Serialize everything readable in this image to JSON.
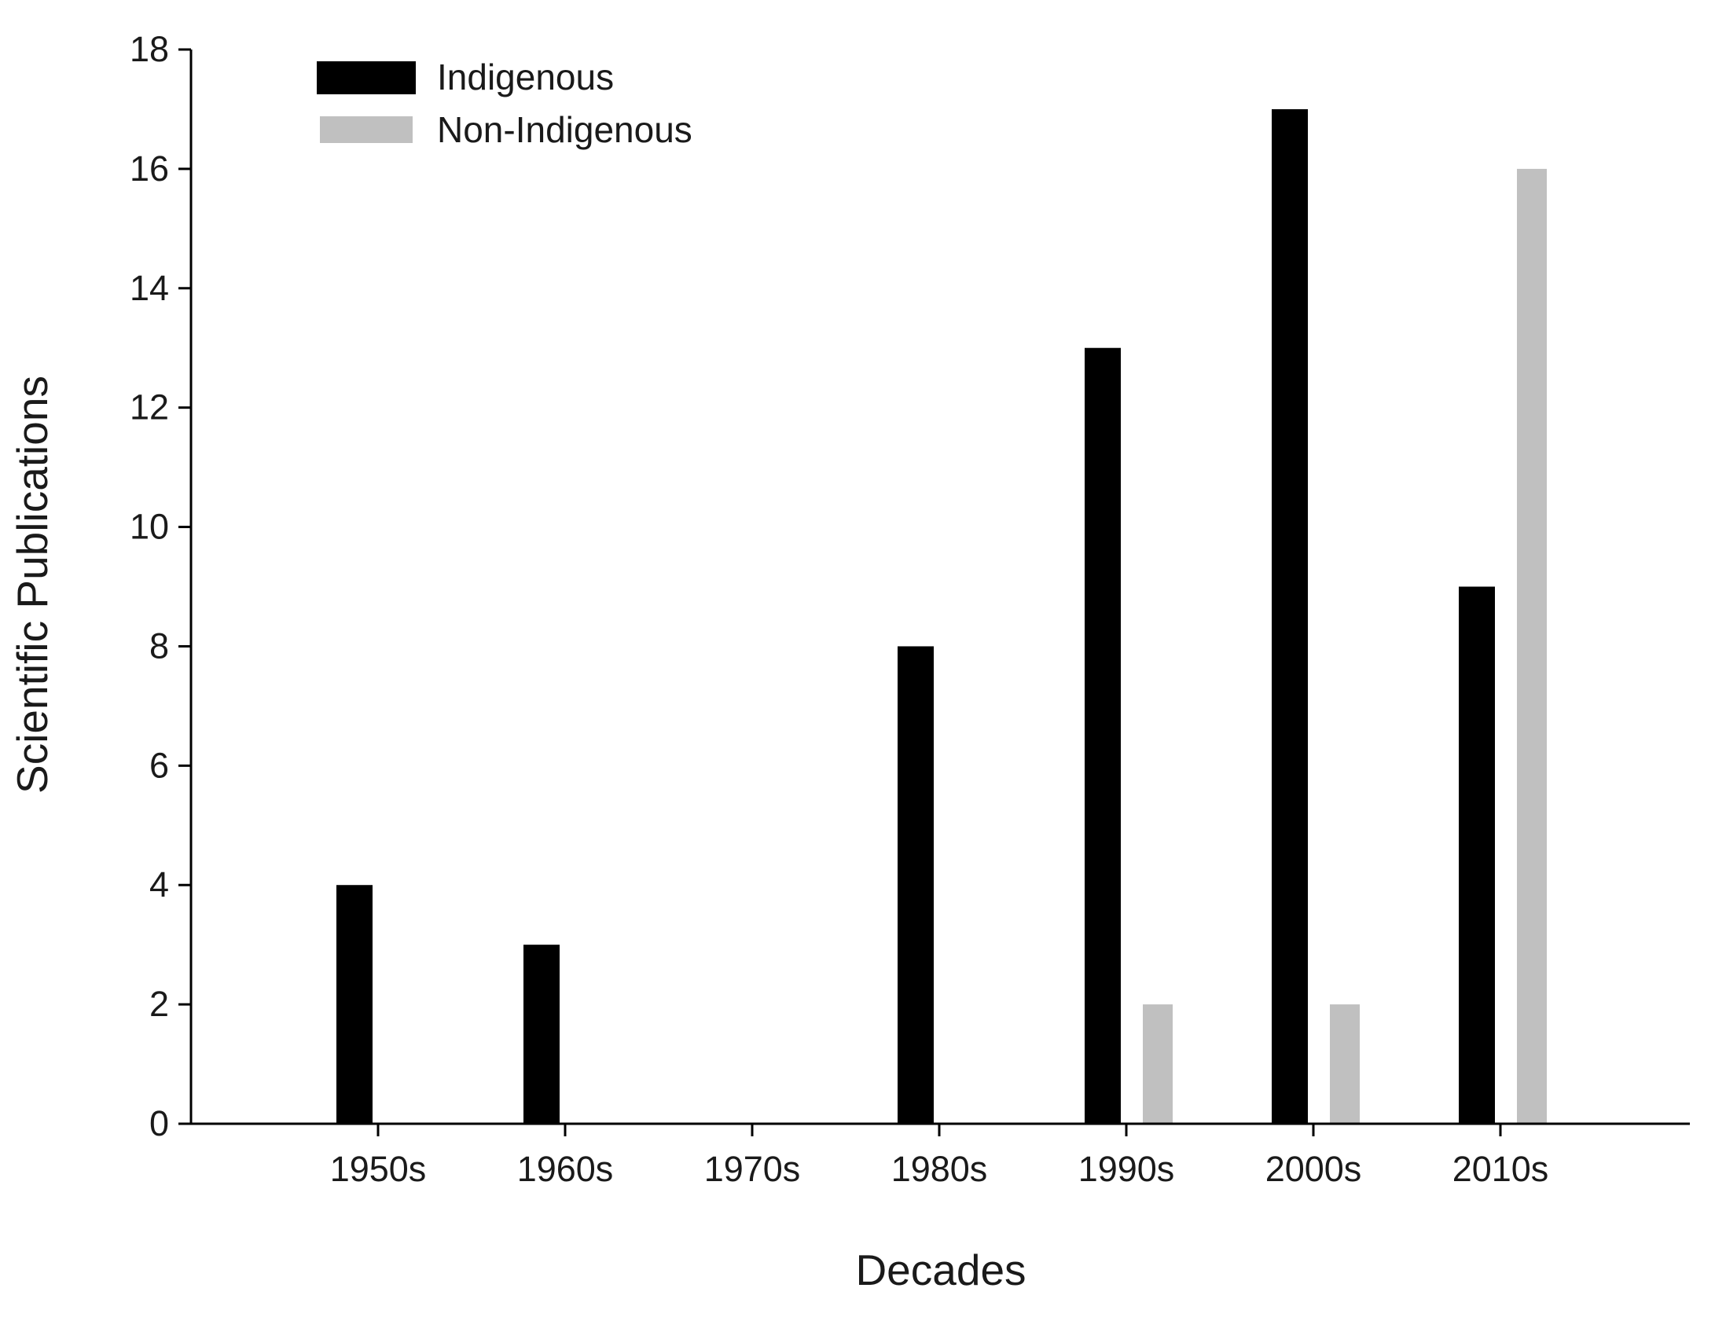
{
  "chart_data": {
    "type": "bar",
    "title": "",
    "xlabel": "Decades",
    "ylabel": "Scientific Publications",
    "categories": [
      "1950s",
      "1960s",
      "1970s",
      "1980s",
      "1990s",
      "2000s",
      "2010s"
    ],
    "series": [
      {
        "name": "Indigenous",
        "color": "#000000",
        "values": [
          4,
          3,
          0,
          8,
          13,
          17,
          9
        ]
      },
      {
        "name": "Non-Indigenous",
        "color": "#c0c0c0",
        "values": [
          0,
          0,
          0,
          0,
          2,
          2,
          16
        ]
      }
    ],
    "ylim": [
      0,
      18
    ],
    "yticks": [
      "0",
      "2",
      "4",
      "6",
      "8",
      "10",
      "12",
      "14",
      "16",
      "18"
    ],
    "grid": false,
    "legend_position": "top-left"
  }
}
